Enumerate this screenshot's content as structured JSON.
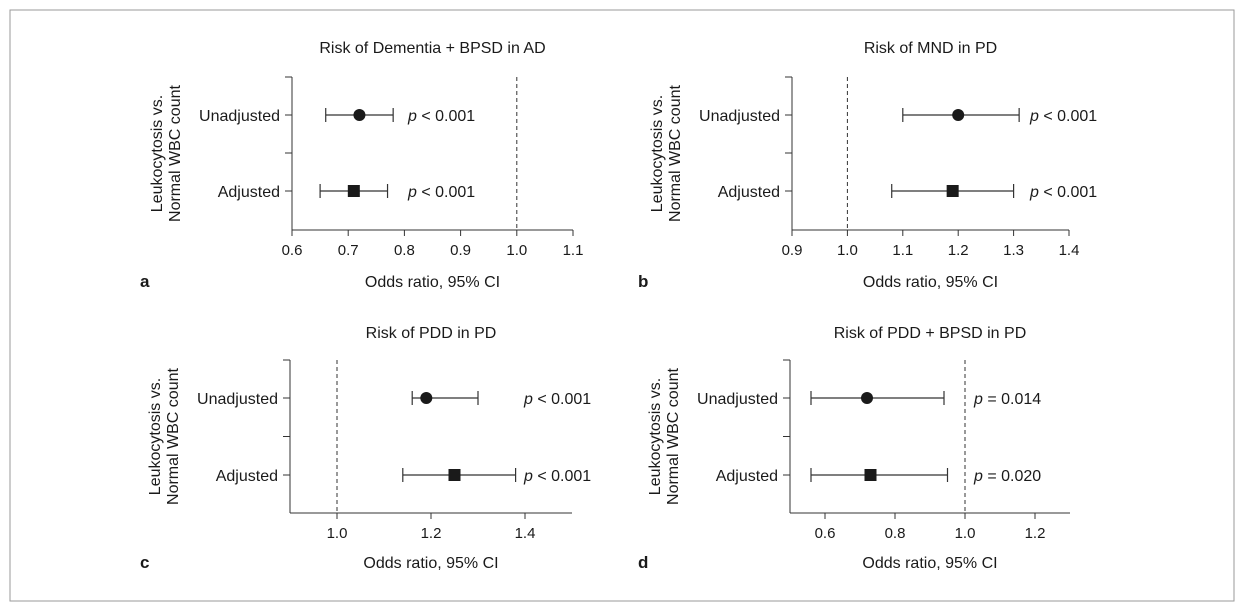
{
  "y_axis_label_line1": "Leukocytosis vs.",
  "y_axis_label_line2": "Normal WBC count",
  "x_axis_label": "Odds ratio, 95% CI",
  "colors": {
    "marker": "#1a1a1a",
    "axis": "#333333",
    "frame": "#9a9a9a"
  },
  "chart_data": [
    {
      "panel": "a",
      "type": "forest",
      "title": "Risk of Dementia + BPSD in AD",
      "xlabel": "Odds ratio, 95% CI",
      "xlim": [
        0.6,
        1.1
      ],
      "xticks": [
        0.6,
        0.7,
        0.8,
        0.9,
        1.0,
        1.1
      ],
      "tick_labels": [
        "0.6",
        "0.7",
        "0.8",
        "0.9",
        "1.0",
        "1.1"
      ],
      "reference_line": 1.0,
      "rows": [
        {
          "label": "Unadjusted",
          "or": 0.72,
          "ci": [
            0.66,
            0.78
          ],
          "marker": "circle",
          "p_stat": "p",
          "p_text": " < 0.001"
        },
        {
          "label": "Adjusted",
          "or": 0.71,
          "ci": [
            0.65,
            0.77
          ],
          "marker": "square",
          "p_stat": "p",
          "p_text": " < 0.001"
        }
      ]
    },
    {
      "panel": "b",
      "type": "forest",
      "title": "Risk of MND in PD",
      "xlabel": "Odds ratio, 95% CI",
      "xlim": [
        0.9,
        1.4
      ],
      "xticks": [
        0.9,
        1.0,
        1.1,
        1.2,
        1.3,
        1.4
      ],
      "tick_labels": [
        "0.9",
        "1.0",
        "1.1",
        "1.2",
        "1.3",
        "1.4"
      ],
      "reference_line": 1.0,
      "rows": [
        {
          "label": "Unadjusted",
          "or": 1.2,
          "ci": [
            1.1,
            1.31
          ],
          "marker": "circle",
          "p_stat": "p",
          "p_text": " < 0.001"
        },
        {
          "label": "Adjusted",
          "or": 1.19,
          "ci": [
            1.08,
            1.3
          ],
          "marker": "square",
          "p_stat": "p",
          "p_text": " < 0.001"
        }
      ]
    },
    {
      "panel": "c",
      "type": "forest",
      "title": "Risk of PDD in PD",
      "xlabel": "Odds ratio, 95% CI",
      "xlim": [
        0.9,
        1.5
      ],
      "xticks": [
        1.0,
        1.2,
        1.4
      ],
      "tick_labels": [
        "1.0",
        "1.2",
        "1.4"
      ],
      "reference_line": 1.0,
      "rows": [
        {
          "label": "Unadjusted",
          "or": 1.19,
          "ci": [
            1.16,
            1.3
          ],
          "marker": "circle",
          "p_stat": "p",
          "p_text": " < 0.001"
        },
        {
          "label": "Adjusted",
          "or": 1.25,
          "ci": [
            1.14,
            1.38
          ],
          "marker": "square",
          "p_stat": "p",
          "p_text": " < 0.001"
        }
      ]
    },
    {
      "panel": "d",
      "type": "forest",
      "title": "Risk of PDD + BPSD in PD",
      "xlabel": "Odds ratio, 95% CI",
      "xlim": [
        0.5,
        1.3
      ],
      "xticks": [
        0.6,
        0.8,
        1.0,
        1.2
      ],
      "tick_labels": [
        "0.6",
        "0.8",
        "1.0",
        "1.2"
      ],
      "reference_line": 1.0,
      "rows": [
        {
          "label": "Unadjusted",
          "or": 0.72,
          "ci": [
            0.56,
            0.94
          ],
          "marker": "circle",
          "p_stat": "p",
          "p_text": " = 0.014"
        },
        {
          "label": "Adjusted",
          "or": 0.73,
          "ci": [
            0.56,
            0.95
          ],
          "marker": "square",
          "p_stat": "p",
          "p_text": " = 0.020"
        }
      ]
    }
  ]
}
